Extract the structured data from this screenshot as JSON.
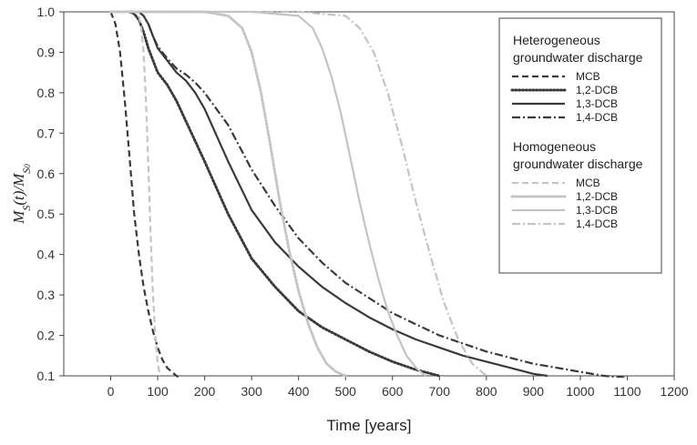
{
  "chart_data": {
    "type": "line",
    "title": "",
    "xlabel": "Time [years]",
    "ylabel": {
      "main": "M",
      "sub1": "S",
      "mid": "(t)/M",
      "sub2": "S",
      "sub3": "0"
    },
    "xlim": [
      -100,
      1200
    ],
    "ylim": [
      0.1,
      1.0
    ],
    "xticks": [
      "0",
      "100",
      "200",
      "300",
      "400",
      "500",
      "600",
      "700",
      "800",
      "900",
      "1000",
      "1100",
      "1200"
    ],
    "yticks": [
      "0.1",
      "0.2",
      "0.3",
      "0.4",
      "0.5",
      "0.6",
      "0.7",
      "0.8",
      "0.9",
      "1.0"
    ],
    "grid": false,
    "legend_position": "top-right",
    "legend_groups": [
      {
        "title_lines": [
          "Heterogeneous",
          "groundwater discharge"
        ],
        "series": [
          "het_mcb",
          "het_12",
          "het_13",
          "het_14"
        ]
      },
      {
        "title_lines": [
          "Homogeneous",
          "groundwater discharge"
        ],
        "series": [
          "hom_mcb",
          "hom_12",
          "hom_13",
          "hom_14"
        ]
      }
    ],
    "series": [
      {
        "id": "het_mcb",
        "name": "MCB",
        "color": "#3a3a3a",
        "style": "dashed",
        "x": [
          0,
          10,
          20,
          30,
          40,
          50,
          60,
          70,
          80,
          90,
          100,
          110,
          120,
          130,
          140,
          148
        ],
        "y": [
          1.0,
          0.97,
          0.9,
          0.78,
          0.64,
          0.5,
          0.4,
          0.32,
          0.26,
          0.21,
          0.17,
          0.14,
          0.12,
          0.11,
          0.1,
          0.095
        ]
      },
      {
        "id": "het_12",
        "name": "1,2-DCB",
        "color": "#3a3a3a",
        "style": "dotted",
        "x": [
          40,
          50,
          60,
          70,
          80,
          90,
          100,
          120,
          140,
          160,
          180,
          200,
          250,
          300,
          350,
          400,
          450,
          500,
          550,
          600,
          650,
          700
        ],
        "y": [
          1.0,
          0.995,
          0.98,
          0.95,
          0.91,
          0.88,
          0.85,
          0.82,
          0.78,
          0.73,
          0.68,
          0.63,
          0.5,
          0.39,
          0.32,
          0.26,
          0.22,
          0.19,
          0.16,
          0.135,
          0.115,
          0.1
        ]
      },
      {
        "id": "het_13",
        "name": "1,3-DCB",
        "color": "#3a3a3a",
        "style": "solid",
        "x": [
          60,
          70,
          80,
          90,
          100,
          120,
          140,
          160,
          180,
          200,
          250,
          300,
          350,
          400,
          450,
          500,
          550,
          600,
          650,
          700,
          750,
          800,
          850,
          900,
          930
        ],
        "y": [
          1.0,
          0.99,
          0.97,
          0.94,
          0.91,
          0.88,
          0.85,
          0.83,
          0.8,
          0.76,
          0.63,
          0.51,
          0.43,
          0.37,
          0.32,
          0.28,
          0.245,
          0.215,
          0.19,
          0.17,
          0.15,
          0.135,
          0.12,
          0.105,
          0.1
        ]
      },
      {
        "id": "het_14",
        "name": "1,4-DCB",
        "color": "#3a3a3a",
        "style": "dashdot",
        "x": [
          60,
          70,
          80,
          90,
          100,
          120,
          140,
          160,
          180,
          200,
          250,
          300,
          350,
          400,
          450,
          500,
          600,
          700,
          800,
          900,
          1000,
          1050,
          1100
        ],
        "y": [
          1.0,
          0.99,
          0.97,
          0.94,
          0.915,
          0.885,
          0.86,
          0.845,
          0.825,
          0.8,
          0.72,
          0.61,
          0.52,
          0.44,
          0.38,
          0.33,
          0.255,
          0.2,
          0.16,
          0.13,
          0.11,
          0.1,
          0.095
        ]
      },
      {
        "id": "hom_mcb",
        "name": "MCB",
        "color": "#c4c4c4",
        "style": "dashed",
        "x": [
          0,
          30,
          50,
          60,
          65,
          70,
          75,
          80,
          85,
          90,
          95,
          100,
          105
        ],
        "y": [
          1.0,
          1.0,
          1.0,
          0.99,
          0.96,
          0.9,
          0.78,
          0.62,
          0.45,
          0.3,
          0.2,
          0.13,
          0.1
        ]
      },
      {
        "id": "hom_12",
        "name": "1,2-DCB",
        "color": "#c4c4c4",
        "style": "dotted",
        "x": [
          0,
          200,
          250,
          280,
          300,
          320,
          340,
          360,
          380,
          400,
          420,
          440,
          460,
          480,
          500
        ],
        "y": [
          1.0,
          1.0,
          0.99,
          0.96,
          0.9,
          0.8,
          0.67,
          0.53,
          0.41,
          0.31,
          0.23,
          0.17,
          0.13,
          0.11,
          0.1
        ]
      },
      {
        "id": "hom_13",
        "name": "1,3-DCB",
        "color": "#c4c4c4",
        "style": "solid",
        "x": [
          0,
          300,
          400,
          430,
          450,
          470,
          490,
          510,
          530,
          550,
          570,
          590,
          610,
          630,
          650,
          670
        ],
        "y": [
          1.0,
          1.0,
          0.99,
          0.96,
          0.91,
          0.84,
          0.75,
          0.64,
          0.53,
          0.43,
          0.34,
          0.26,
          0.2,
          0.15,
          0.12,
          0.1
        ]
      },
      {
        "id": "hom_14",
        "name": "1,4-DCB",
        "color": "#c4c4c4",
        "style": "dashdot",
        "x": [
          0,
          400,
          500,
          530,
          560,
          590,
          620,
          650,
          680,
          710,
          740,
          770,
          800
        ],
        "y": [
          1.0,
          1.0,
          0.99,
          0.96,
          0.9,
          0.8,
          0.67,
          0.53,
          0.4,
          0.28,
          0.19,
          0.13,
          0.1
        ]
      }
    ]
  }
}
